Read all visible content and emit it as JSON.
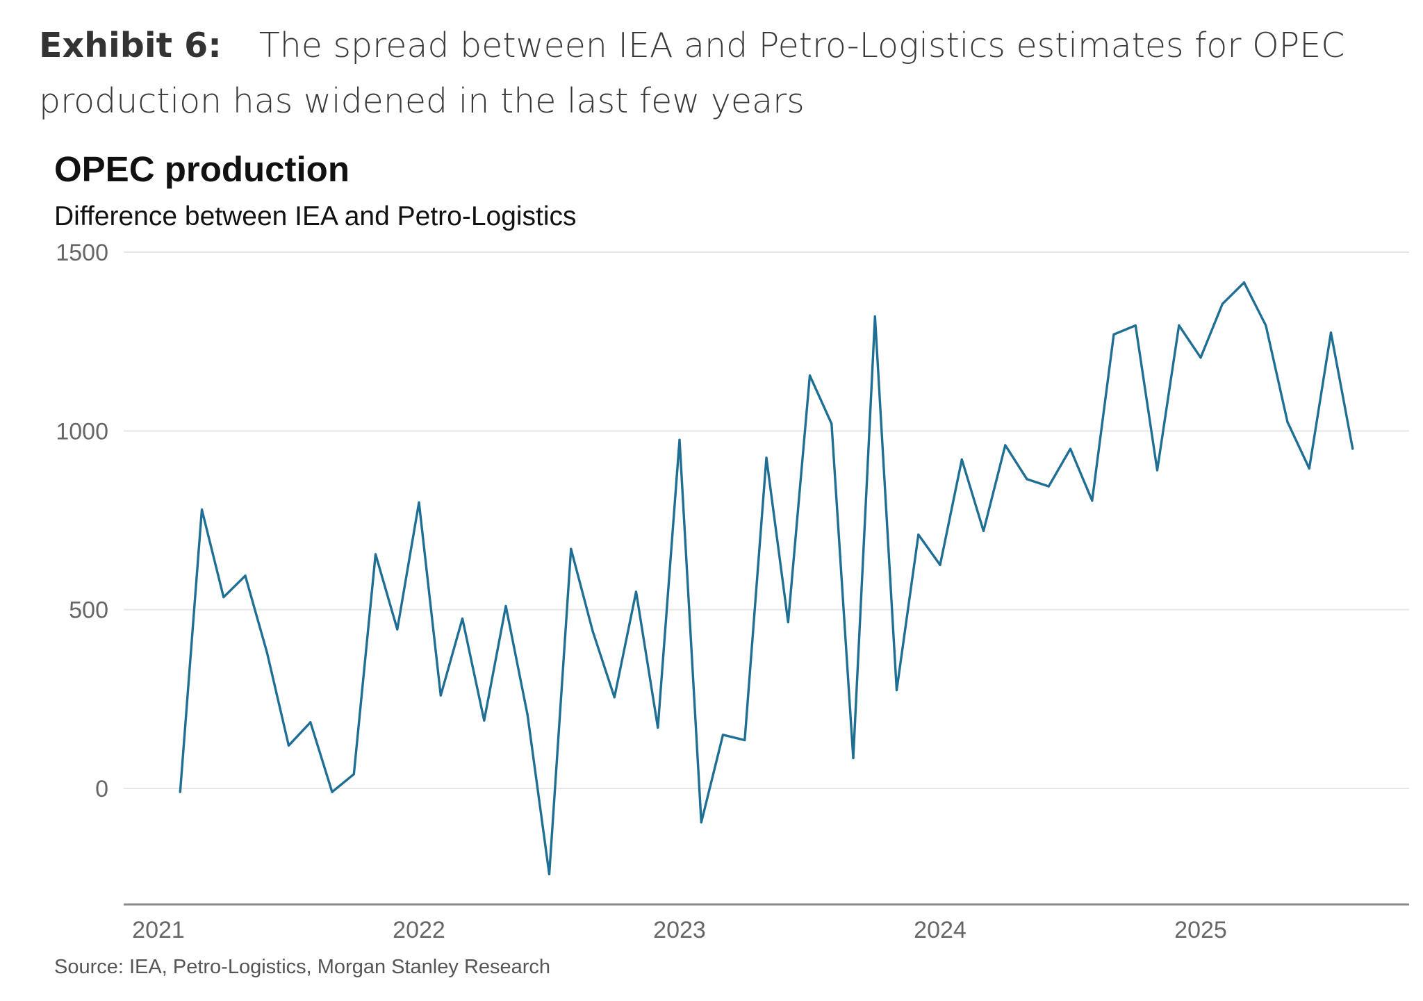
{
  "exhibit": {
    "label": "Exhibit 6:",
    "text": "The spread between IEA and Petro-Logistics estimates for OPEC production has widened in the last few years"
  },
  "source": "Source: IEA, Petro-Logistics, Morgan Stanley Research",
  "chart_data": {
    "type": "line",
    "title": "OPEC production",
    "subtitle": "Difference between IEA and Petro-Logistics",
    "xlabel": "",
    "ylabel": "",
    "ylim": [
      -330,
      1500
    ],
    "yticks": [
      0,
      500,
      1000,
      1500
    ],
    "xticks": [
      "2021",
      "2022",
      "2023",
      "2024",
      "2025"
    ],
    "grid": true,
    "line_color": "#1f6e94",
    "series": [
      {
        "x": [
          "2021-02",
          "2021-03",
          "2021-04",
          "2021-05",
          "2021-06",
          "2021-07",
          "2021-08",
          "2021-09",
          "2021-10",
          "2021-11",
          "2021-12",
          "2022-01",
          "2022-02",
          "2022-03",
          "2022-04",
          "2022-05",
          "2022-06",
          "2022-07",
          "2022-08",
          "2022-09",
          "2022-10",
          "2022-11",
          "2022-12",
          "2023-01",
          "2023-02",
          "2023-03",
          "2023-04",
          "2023-05",
          "2023-06",
          "2023-07",
          "2023-08",
          "2023-09",
          "2023-10",
          "2023-11",
          "2023-12",
          "2024-01",
          "2024-02",
          "2024-03",
          "2024-04",
          "2024-05",
          "2024-06",
          "2024-07",
          "2024-08",
          "2024-09",
          "2024-10",
          "2024-11",
          "2024-12",
          "2025-01",
          "2025-02",
          "2025-03",
          "2025-04",
          "2025-05",
          "2025-06",
          "2025-07",
          "2025-08"
        ],
        "values": [
          -10,
          780,
          535,
          595,
          380,
          120,
          185,
          -10,
          40,
          655,
          445,
          800,
          260,
          475,
          190,
          510,
          205,
          -240,
          670,
          440,
          255,
          550,
          170,
          975,
          -95,
          150,
          135,
          925,
          465,
          1155,
          1020,
          85,
          1320,
          275,
          710,
          625,
          920,
          720,
          960,
          865,
          845,
          950,
          805,
          1270,
          1295,
          890,
          1295,
          1205,
          1355,
          1415,
          1295,
          1025,
          895,
          1275,
          950
        ]
      }
    ]
  }
}
